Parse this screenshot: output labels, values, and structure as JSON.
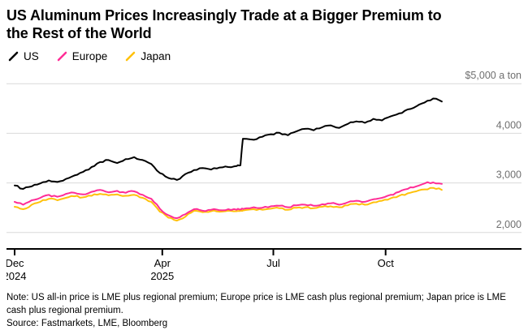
{
  "header": {
    "title_lines": [
      "US Aluminum Prices Increasingly Trade at a Bigger Premium to",
      "the Rest of the World"
    ]
  },
  "footer": {
    "note": "Note: US all-in price is LME plus regional premium; Europe price is LME cash plus regional premium; Japan price is LME cash plus regional premium.",
    "source": "Source: Fastmarkets, LME, Bloomberg"
  },
  "chart_data": {
    "type": "line",
    "title": "US Aluminum Prices Increasingly Trade at a Bigger Premium to the Rest of the World",
    "unit": "$ per ton",
    "legend_position": "top-left",
    "grid": "horizontal",
    "x_domain_days": [
      0,
      410
    ],
    "y_domain": [
      1850,
      5150
    ],
    "y_ticks": [
      {
        "value": 2000,
        "label": "2,000"
      },
      {
        "value": 3000,
        "label": "3,000"
      },
      {
        "value": 4000,
        "label": "4,000"
      },
      {
        "value": 5000,
        "label": "$5,000 a ton"
      }
    ],
    "x_ticks": [
      {
        "day": 0,
        "label": "Dec",
        "sublabel": "2024"
      },
      {
        "day": 121,
        "label": "Apr",
        "sublabel": "2025"
      },
      {
        "day": 212,
        "label": "Jul",
        "sublabel": ""
      },
      {
        "day": 304,
        "label": "Oct",
        "sublabel": ""
      }
    ],
    "x_days": [
      0,
      7,
      14,
      21,
      28,
      35,
      42,
      49,
      56,
      63,
      70,
      77,
      84,
      91,
      98,
      105,
      112,
      119,
      126,
      133,
      140,
      147,
      154,
      161,
      168,
      175,
      182,
      185,
      187,
      196,
      203,
      210,
      217,
      224,
      231,
      238,
      245,
      252,
      259,
      266,
      273,
      280,
      287,
      294,
      301,
      308,
      315,
      322,
      329,
      336,
      343,
      350
    ],
    "series": [
      {
        "name": "US",
        "color": "#000000",
        "values": [
          2950,
          2880,
          2930,
          2990,
          3050,
          3020,
          3080,
          3150,
          3220,
          3320,
          3420,
          3460,
          3400,
          3480,
          3520,
          3460,
          3380,
          3200,
          3100,
          3060,
          3180,
          3260,
          3300,
          3270,
          3310,
          3320,
          3340,
          3355,
          3890,
          3870,
          3930,
          3980,
          4010,
          3960,
          4040,
          4090,
          4060,
          4120,
          4160,
          4110,
          4190,
          4240,
          4210,
          4290,
          4260,
          4340,
          4400,
          4480,
          4540,
          4620,
          4700,
          4640
        ]
      },
      {
        "name": "Europe",
        "color": "#ff2d96",
        "values": [
          2620,
          2560,
          2650,
          2700,
          2760,
          2720,
          2780,
          2800,
          2770,
          2820,
          2860,
          2810,
          2840,
          2800,
          2830,
          2760,
          2680,
          2480,
          2350,
          2290,
          2370,
          2470,
          2440,
          2460,
          2450,
          2470,
          2460,
          2465,
          2475,
          2510,
          2500,
          2530,
          2540,
          2510,
          2550,
          2560,
          2540,
          2570,
          2590,
          2560,
          2610,
          2640,
          2620,
          2670,
          2700,
          2760,
          2820,
          2880,
          2930,
          2990,
          3010,
          2980
        ]
      },
      {
        "name": "Japan",
        "color": "#ffc10a",
        "values": [
          2520,
          2470,
          2560,
          2620,
          2680,
          2650,
          2700,
          2730,
          2710,
          2740,
          2780,
          2750,
          2770,
          2740,
          2760,
          2700,
          2620,
          2420,
          2300,
          2240,
          2320,
          2440,
          2410,
          2430,
          2420,
          2440,
          2430,
          2435,
          2445,
          2470,
          2460,
          2480,
          2490,
          2460,
          2500,
          2510,
          2490,
          2520,
          2530,
          2510,
          2550,
          2580,
          2560,
          2610,
          2640,
          2690,
          2740,
          2790,
          2830,
          2870,
          2900,
          2860
        ]
      }
    ]
  }
}
